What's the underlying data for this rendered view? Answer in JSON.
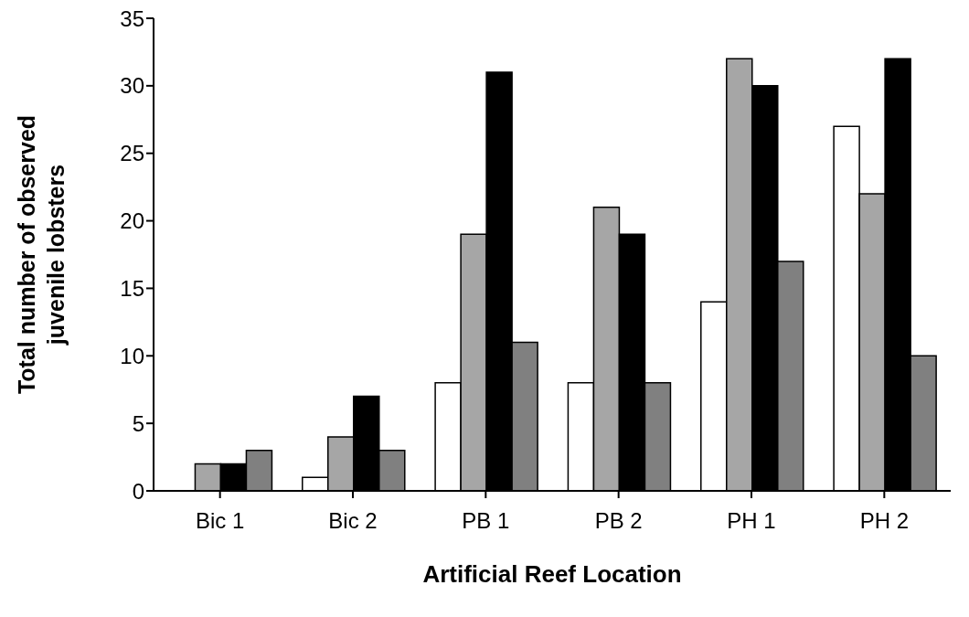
{
  "chart_data": {
    "type": "bar",
    "xlabel": "Artificial Reef Location",
    "ylabel": "Total number of observed juvenile lobsters",
    "categories": [
      "Bic 1",
      "Bic 2",
      "PB 1",
      "PB 2",
      "PH 1",
      "PH 2"
    ],
    "series": [
      {
        "color": "#ffffff",
        "values": [
          0,
          1,
          8,
          8,
          14,
          27
        ]
      },
      {
        "color": "#a6a6a6",
        "values": [
          2,
          4,
          19,
          21,
          32,
          22
        ]
      },
      {
        "color": "#000000",
        "values": [
          2,
          7,
          31,
          19,
          30,
          32
        ]
      },
      {
        "color": "#808080",
        "values": [
          3,
          3,
          11,
          8,
          17,
          10
        ]
      }
    ],
    "ylim": [
      0,
      35
    ],
    "yticks": [
      0,
      5,
      10,
      15,
      20,
      25,
      30,
      35
    ],
    "grid": false,
    "legend": false
  }
}
